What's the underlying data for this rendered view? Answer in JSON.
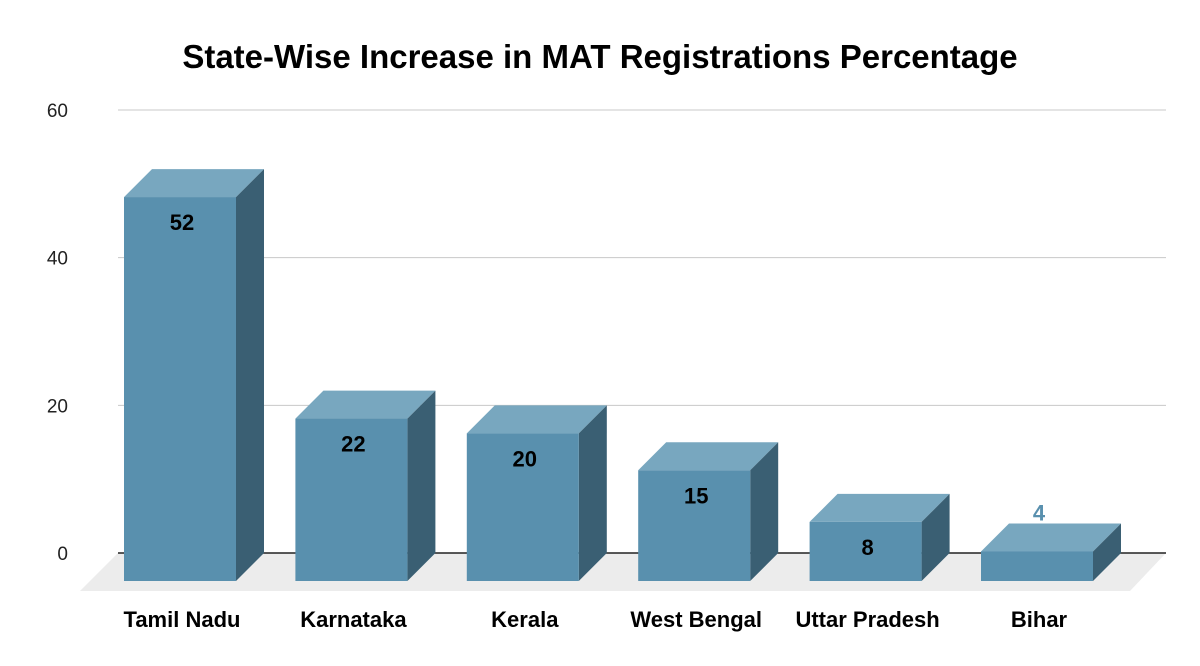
{
  "chart_data": {
    "type": "bar",
    "title": "State-Wise Increase in MAT Registrations Percentage",
    "categories": [
      "Tamil Nadu",
      "Karnataka",
      "Kerala",
      "West Bengal",
      "Uttar Pradesh",
      "Bihar"
    ],
    "values": [
      52,
      22,
      20,
      15,
      8,
      4
    ],
    "xlabel": "",
    "ylabel": "",
    "ylim": [
      0,
      60
    ],
    "yticks": [
      0,
      20,
      40,
      60
    ],
    "grid": true,
    "legend": "none",
    "style": "3d",
    "colors": {
      "front": "#5990ae",
      "top": "#78a7bf",
      "side": "#3a5f73",
      "floor": "#ececec",
      "grid": "#c8c8c8",
      "outside_label": "#5990ae"
    }
  }
}
